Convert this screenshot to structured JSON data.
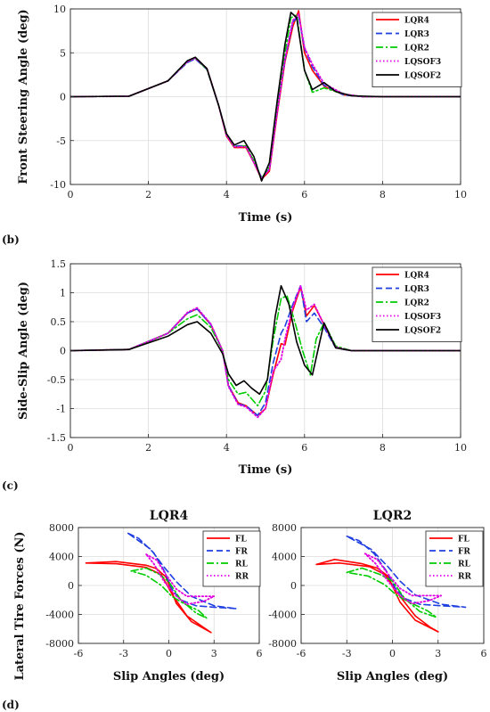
{
  "panel_labels": [
    "(b)",
    "(c)",
    "(d)"
  ],
  "chart_data": [
    {
      "id": "steer",
      "type": "line",
      "title": "",
      "xlabel": "Time (s)",
      "ylabel": "Front Steering Angle (deg)",
      "xlim": [
        0,
        10
      ],
      "ylim": [
        -10,
        10
      ],
      "xticks": [
        0,
        2,
        4,
        6,
        8,
        10
      ],
      "yticks": [
        -10,
        -5,
        0,
        5,
        10
      ],
      "grid": true,
      "legend": "top-right",
      "series": [
        {
          "name": "LQR4",
          "color": "#ff0000",
          "dash": "solid",
          "x": [
            0,
            1.5,
            2.5,
            3.0,
            3.2,
            3.5,
            3.8,
            4.0,
            4.2,
            4.5,
            4.7,
            4.9,
            5.1,
            5.3,
            5.5,
            5.7,
            5.85,
            6.0,
            6.2,
            6.5,
            7.0,
            7.5,
            8,
            10
          ],
          "y": [
            0,
            0.05,
            1.8,
            4.0,
            4.4,
            3.2,
            -1,
            -4.5,
            -5.8,
            -5.8,
            -7.5,
            -9.4,
            -8.5,
            -2,
            4,
            8,
            9.8,
            5,
            3,
            1.2,
            0.2,
            0,
            0,
            0
          ]
        },
        {
          "name": "LQR3",
          "color": "#1f3fe0",
          "dash": "dash",
          "x": [
            0,
            1.5,
            2.5,
            3.0,
            3.2,
            3.5,
            3.8,
            4.0,
            4.2,
            4.5,
            4.7,
            4.9,
            5.1,
            5.3,
            5.5,
            5.7,
            5.85,
            6.0,
            6.2,
            6.5,
            7.0,
            7.5,
            8,
            10
          ],
          "y": [
            0,
            0.05,
            1.8,
            3.9,
            4.3,
            3.1,
            -1,
            -4.3,
            -5.6,
            -5.6,
            -7.4,
            -9.2,
            -8.2,
            -1.5,
            4.2,
            8.5,
            9.2,
            5.5,
            3.4,
            1.3,
            0.2,
            0,
            0,
            0
          ]
        },
        {
          "name": "LQR2",
          "color": "#00cc00",
          "dash": "dashdot",
          "x": [
            0,
            1.5,
            2.5,
            3.0,
            3.2,
            3.5,
            3.8,
            4.0,
            4.2,
            4.5,
            4.7,
            4.9,
            5.1,
            5.3,
            5.5,
            5.65,
            5.8,
            6.0,
            6.2,
            6.5,
            7.0,
            7.5,
            8,
            10
          ],
          "y": [
            0,
            0.05,
            1.8,
            4.0,
            4.4,
            3.1,
            -1,
            -4.4,
            -5.7,
            -5.6,
            -7.3,
            -9.3,
            -8.0,
            -1.0,
            5.0,
            9.0,
            9.3,
            3.0,
            0.5,
            1.0,
            0.3,
            0,
            0,
            0
          ]
        },
        {
          "name": "LQSOF3",
          "color": "#e000e0",
          "dash": "dot",
          "x": [
            0,
            1.5,
            2.5,
            3.0,
            3.2,
            3.5,
            3.8,
            4.0,
            4.2,
            4.5,
            4.7,
            4.9,
            5.1,
            5.3,
            5.5,
            5.7,
            5.85,
            6.0,
            6.2,
            6.5,
            7.0,
            7.5,
            8,
            10
          ],
          "y": [
            0,
            0.05,
            1.8,
            4.0,
            4.4,
            3.2,
            -1,
            -4.4,
            -5.7,
            -5.7,
            -7.5,
            -9.3,
            -8.3,
            -1.8,
            4.3,
            8.7,
            9.4,
            5.6,
            3.7,
            1.5,
            0.3,
            0,
            0,
            0
          ]
        },
        {
          "name": "LQSOF2",
          "color": "#000000",
          "dash": "solid",
          "x": [
            0,
            1.5,
            2.5,
            3.0,
            3.2,
            3.5,
            3.8,
            4.0,
            4.2,
            4.45,
            4.7,
            4.9,
            5.1,
            5.3,
            5.5,
            5.65,
            5.8,
            6.0,
            6.2,
            6.5,
            6.8,
            7.2,
            8,
            10
          ],
          "y": [
            0,
            0.05,
            1.8,
            4.1,
            4.5,
            3.2,
            -1,
            -4.2,
            -5.5,
            -5.0,
            -6.8,
            -9.6,
            -7.5,
            -0.5,
            6.0,
            9.6,
            9.0,
            3.0,
            0.8,
            1.6,
            0.6,
            0.1,
            0,
            0
          ]
        }
      ]
    },
    {
      "id": "slip",
      "type": "line",
      "title": "",
      "xlabel": "Time (s)",
      "ylabel": "Side-Slip Angle (deg)",
      "xlim": [
        0,
        10
      ],
      "ylim": [
        -1.5,
        1.5
      ],
      "xticks": [
        0,
        2,
        4,
        6,
        8,
        10
      ],
      "yticks": [
        -1.5,
        -1,
        -0.5,
        0,
        0.5,
        1,
        1.5
      ],
      "grid": true,
      "legend": "top-right",
      "series": [
        {
          "name": "LQR4",
          "color": "#ff0000",
          "dash": "solid",
          "x": [
            0,
            1.5,
            2.5,
            3.0,
            3.25,
            3.6,
            3.9,
            4.05,
            4.3,
            4.5,
            4.8,
            5.0,
            5.2,
            5.4,
            5.5,
            5.7,
            5.9,
            6.05,
            6.25,
            6.5,
            6.8,
            7.2,
            8,
            10
          ],
          "y": [
            0,
            0.02,
            0.3,
            0.65,
            0.72,
            0.45,
            0,
            -0.6,
            -0.9,
            -0.95,
            -1.12,
            -1.0,
            -0.4,
            0.12,
            0.1,
            0.7,
            1.1,
            0.6,
            0.78,
            0.45,
            0.05,
            0,
            0,
            0
          ]
        },
        {
          "name": "LQR3",
          "color": "#1f3fe0",
          "dash": "dash",
          "x": [
            0,
            1.5,
            2.5,
            3.0,
            3.25,
            3.6,
            3.9,
            4.05,
            4.3,
            4.5,
            4.8,
            5.0,
            5.2,
            5.4,
            5.5,
            5.7,
            5.9,
            6.05,
            6.25,
            6.5,
            6.8,
            7.2,
            8,
            10
          ],
          "y": [
            0,
            0.02,
            0.3,
            0.65,
            0.72,
            0.45,
            0,
            -0.6,
            -0.92,
            -0.95,
            -1.12,
            -0.9,
            -0.2,
            0.3,
            0.42,
            0.8,
            1.12,
            0.5,
            0.65,
            0.4,
            0.05,
            0,
            0,
            0
          ]
        },
        {
          "name": "LQR2",
          "color": "#00cc00",
          "dash": "dashdot",
          "x": [
            0,
            1.5,
            2.5,
            3.0,
            3.25,
            3.6,
            3.9,
            4.05,
            4.3,
            4.5,
            4.8,
            5.0,
            5.2,
            5.4,
            5.55,
            5.75,
            5.95,
            6.15,
            6.3,
            6.5,
            6.8,
            7.2,
            8,
            10
          ],
          "y": [
            0,
            0.02,
            0.3,
            0.55,
            0.62,
            0.4,
            0,
            -0.5,
            -0.75,
            -0.72,
            -0.95,
            -0.7,
            0.2,
            0.9,
            0.95,
            0.5,
            0,
            -0.42,
            0.2,
            0.48,
            0.08,
            0,
            0,
            0
          ]
        },
        {
          "name": "LQSOF3",
          "color": "#e000e0",
          "dash": "dot",
          "x": [
            0,
            1.5,
            2.5,
            3.0,
            3.25,
            3.6,
            3.9,
            4.05,
            4.3,
            4.5,
            4.8,
            5.0,
            5.2,
            5.4,
            5.5,
            5.7,
            5.9,
            6.05,
            6.25,
            6.5,
            6.8,
            7.2,
            8,
            10
          ],
          "y": [
            0,
            0.02,
            0.3,
            0.66,
            0.74,
            0.46,
            0,
            -0.62,
            -0.93,
            -0.97,
            -1.15,
            -1.0,
            -0.35,
            -0.15,
            0.2,
            0.75,
            1.12,
            0.7,
            0.8,
            0.45,
            0.06,
            0,
            0,
            0
          ]
        },
        {
          "name": "LQSOF2",
          "color": "#000000",
          "dash": "solid",
          "x": [
            0,
            1.5,
            2.5,
            3.0,
            3.25,
            3.6,
            3.9,
            4.05,
            4.25,
            4.45,
            4.65,
            4.85,
            5.05,
            5.25,
            5.4,
            5.6,
            5.8,
            6.0,
            6.2,
            6.5,
            6.8,
            7.2,
            8,
            10
          ],
          "y": [
            0,
            0.02,
            0.25,
            0.45,
            0.5,
            0.3,
            -0.05,
            -0.4,
            -0.6,
            -0.52,
            -0.65,
            -0.75,
            -0.5,
            0.6,
            1.12,
            0.8,
            0.15,
            -0.25,
            -0.42,
            0.48,
            0.05,
            0,
            0,
            0
          ]
        }
      ]
    },
    {
      "id": "lqr4",
      "type": "line",
      "title": "LQR4",
      "xlabel": "Slip Angles (deg)",
      "ylabel": "Lateral Tire Forces (N)",
      "xlim": [
        -6,
        6
      ],
      "ylim": [
        -8000,
        8000
      ],
      "xticks": [
        -6,
        -3,
        0,
        3,
        6
      ],
      "yticks": [
        -8000,
        -4000,
        0,
        4000,
        8000
      ],
      "grid": true,
      "legend": "top-right",
      "series": [
        {
          "name": "FL",
          "color": "#ff0000",
          "dash": "solid",
          "x": [
            -5.5,
            -3.5,
            -1.5,
            -0.8,
            -0.2,
            0.5,
            1.5,
            2.8,
            2.3,
            1.2,
            0.3,
            -0.5,
            -1.5,
            -3.5,
            -5.5
          ],
          "y": [
            3100,
            3300,
            2800,
            2300,
            1200,
            -2500,
            -5000,
            -6500,
            -5800,
            -4200,
            -1500,
            1500,
            2500,
            3000,
            3100
          ]
        },
        {
          "name": "FR",
          "color": "#1f3fe0",
          "dash": "dash",
          "x": [
            -2.7,
            -2.0,
            -1.0,
            -0.3,
            0.2,
            0.8,
            1.8,
            3.0,
            4.5,
            3.0,
            1.5,
            0.5,
            -0.3,
            -1.2,
            -2.7
          ],
          "y": [
            7200,
            6500,
            4500,
            2000,
            -500,
            -2000,
            -2800,
            -3000,
            -3200,
            -2800,
            -1500,
            500,
            2500,
            5000,
            7200
          ]
        },
        {
          "name": "RL",
          "color": "#00cc00",
          "dash": "dashdot",
          "x": [
            -2.5,
            -1.5,
            -0.6,
            0,
            0.8,
            1.8,
            2.5,
            2.0,
            1.0,
            0.2,
            -0.5,
            -1.5,
            -2.5
          ],
          "y": [
            2000,
            2400,
            1500,
            500,
            -2000,
            -3800,
            -4500,
            -3500,
            -2500,
            -1500,
            0,
            1400,
            2000
          ]
        },
        {
          "name": "RR",
          "color": "#e000e0",
          "dash": "dot",
          "x": [
            -1.5,
            -0.8,
            -0.2,
            0.5,
            1.2,
            2.2,
            3.0,
            2.3,
            1.2,
            0.5,
            -0.3,
            -1.0,
            -1.5
          ],
          "y": [
            4300,
            3500,
            1500,
            -500,
            -1500,
            -1500,
            -1500,
            -2200,
            -2600,
            -1500,
            500,
            3000,
            4300
          ]
        }
      ]
    },
    {
      "id": "lqr2",
      "type": "line",
      "title": "LQR2",
      "xlabel": "Slip Angles (deg)",
      "ylabel": "",
      "xlim": [
        -6,
        6
      ],
      "ylim": [
        -8000,
        8000
      ],
      "xticks": [
        -6,
        -3,
        0,
        3,
        6
      ],
      "yticks": [
        -8000,
        -4000,
        0,
        4000,
        8000
      ],
      "grid": true,
      "legend": "top-right",
      "series": [
        {
          "name": "FL",
          "color": "#ff0000",
          "dash": "solid",
          "x": [
            -5.0,
            -3.8,
            -2.0,
            -1.0,
            -0.3,
            0.5,
            1.5,
            3.0,
            2.5,
            1.5,
            0.5,
            -0.5,
            -1.5,
            -3.5,
            -5.0
          ],
          "y": [
            2900,
            3600,
            3000,
            2400,
            1300,
            -2300,
            -4800,
            -6400,
            -5800,
            -4200,
            -1500,
            1500,
            2600,
            3100,
            2900
          ]
        },
        {
          "name": "FR",
          "color": "#1f3fe0",
          "dash": "dash",
          "x": [
            -3.0,
            -2.2,
            -1.2,
            -0.4,
            0.2,
            0.8,
            1.8,
            3.2,
            4.8,
            3.2,
            1.5,
            0.5,
            -0.3,
            -1.4,
            -3.0
          ],
          "y": [
            6800,
            6200,
            4400,
            2000,
            -400,
            -1800,
            -2600,
            -2800,
            -3000,
            -2600,
            -1300,
            600,
            2600,
            5000,
            6800
          ]
        },
        {
          "name": "RL",
          "color": "#00cc00",
          "dash": "dashdot",
          "x": [
            -3.0,
            -2.0,
            -0.8,
            0,
            0.8,
            1.8,
            2.9,
            2.3,
            1.2,
            0.3,
            -0.5,
            -1.6,
            -3.0
          ],
          "y": [
            1800,
            2400,
            1500,
            600,
            -1800,
            -3600,
            -4400,
            -3500,
            -2400,
            -1400,
            100,
            1300,
            1800
          ]
        },
        {
          "name": "RR",
          "color": "#e000e0",
          "dash": "dot",
          "x": [
            -1.8,
            -1.0,
            -0.3,
            0.5,
            1.3,
            2.3,
            3.2,
            2.4,
            1.3,
            0.5,
            -0.3,
            -1.1,
            -1.8
          ],
          "y": [
            4400,
            3600,
            1600,
            -400,
            -1400,
            -1400,
            -1400,
            -2100,
            -2500,
            -1400,
            600,
            3000,
            4400
          ]
        }
      ]
    }
  ]
}
